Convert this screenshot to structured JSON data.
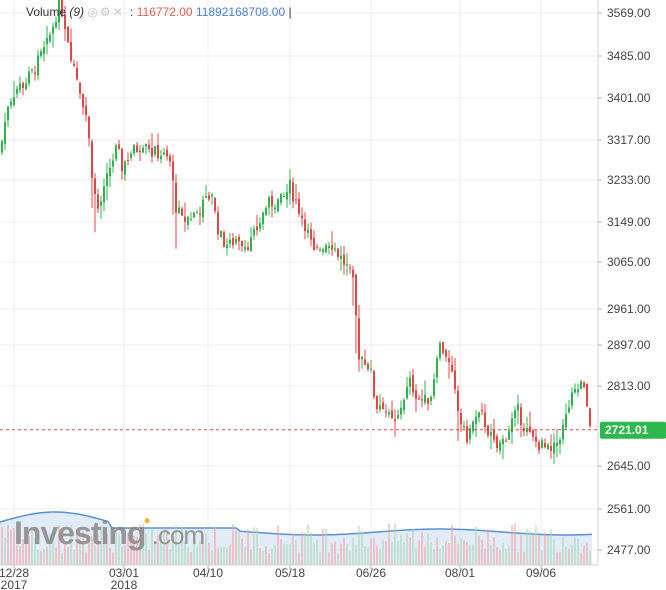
{
  "legend": {
    "name": "Volume",
    "period": "(9)",
    "value1": "116772.00",
    "value2": "11892168708.00",
    "sep": ":",
    "bar": "|"
  },
  "watermark": {
    "brand": "Investing",
    "suffix": ".com"
  },
  "current_price": "2721.01",
  "colors": {
    "up": "#2fb34f",
    "down": "#e64545",
    "volume": "#5a8fd6",
    "price_tag": "#2db84d"
  },
  "chart_data": {
    "type": "candlestick",
    "y_ticks": [
      "3569.00",
      "3485.00",
      "3401.00",
      "3317.00",
      "3233.00",
      "3149.00",
      "3065.00",
      "2961.00",
      "2897.00",
      "2813.00",
      "2645.00",
      "2561.00",
      "2477.00"
    ],
    "x_ticks": [
      {
        "label": "12/28",
        "sub": "2017"
      },
      {
        "label": "03/01",
        "sub": "2018"
      },
      {
        "label": "04/10",
        "sub": ""
      },
      {
        "label": "05/18",
        "sub": ""
      },
      {
        "label": "06/26",
        "sub": ""
      },
      {
        "label": "08/01",
        "sub": ""
      },
      {
        "label": "09/06",
        "sub": ""
      }
    ],
    "ylim": [
      2477,
      3569
    ],
    "last_price": 2721.01,
    "close_path": [
      [
        0,
        3290
      ],
      [
        8,
        3390
      ],
      [
        16,
        3420
      ],
      [
        24,
        3430
      ],
      [
        32,
        3450
      ],
      [
        40,
        3480
      ],
      [
        48,
        3510
      ],
      [
        55,
        3560
      ],
      [
        60,
        3590
      ],
      [
        66,
        3540
      ],
      [
        72,
        3480
      ],
      [
        80,
        3420
      ],
      [
        87,
        3360
      ],
      [
        92,
        3250
      ],
      [
        97,
        3170
      ],
      [
        103,
        3200
      ],
      [
        110,
        3260
      ],
      [
        117,
        3300
      ],
      [
        122,
        3260
      ],
      [
        130,
        3290
      ],
      [
        138,
        3300
      ],
      [
        146,
        3320
      ],
      [
        152,
        3290
      ],
      [
        160,
        3290
      ],
      [
        170,
        3270
      ],
      [
        176,
        3180
      ],
      [
        182,
        3150
      ],
      [
        190,
        3160
      ],
      [
        198,
        3170
      ],
      [
        206,
        3190
      ],
      [
        212,
        3210
      ],
      [
        216,
        3150
      ],
      [
        222,
        3110
      ],
      [
        230,
        3100
      ],
      [
        238,
        3120
      ],
      [
        246,
        3100
      ],
      [
        252,
        3110
      ],
      [
        260,
        3150
      ],
      [
        266,
        3180
      ],
      [
        274,
        3190
      ],
      [
        282,
        3190
      ],
      [
        290,
        3220
      ],
      [
        298,
        3180
      ],
      [
        306,
        3140
      ],
      [
        314,
        3080
      ],
      [
        322,
        3100
      ],
      [
        330,
        3110
      ],
      [
        336,
        3090
      ],
      [
        342,
        3070
      ],
      [
        348,
        3050
      ],
      [
        354,
        3010
      ],
      [
        358,
        2880
      ],
      [
        364,
        2870
      ],
      [
        370,
        2850
      ],
      [
        376,
        2770
      ],
      [
        382,
        2780
      ],
      [
        390,
        2740
      ],
      [
        396,
        2730
      ],
      [
        402,
        2780
      ],
      [
        410,
        2820
      ],
      [
        418,
        2790
      ],
      [
        426,
        2780
      ],
      [
        432,
        2800
      ],
      [
        438,
        2900
      ],
      [
        446,
        2880
      ],
      [
        452,
        2830
      ],
      [
        458,
        2760
      ],
      [
        462,
        2730
      ],
      [
        466,
        2700
      ],
      [
        474,
        2740
      ],
      [
        482,
        2750
      ],
      [
        490,
        2710
      ],
      [
        496,
        2680
      ],
      [
        504,
        2700
      ],
      [
        512,
        2740
      ],
      [
        518,
        2760
      ],
      [
        524,
        2730
      ],
      [
        532,
        2700
      ],
      [
        540,
        2690
      ],
      [
        546,
        2680
      ],
      [
        552,
        2670
      ],
      [
        558,
        2700
      ],
      [
        564,
        2730
      ],
      [
        570,
        2780
      ],
      [
        576,
        2800
      ],
      [
        582,
        2820
      ],
      [
        588,
        2760
      ],
      [
        592,
        2721
      ]
    ]
  }
}
